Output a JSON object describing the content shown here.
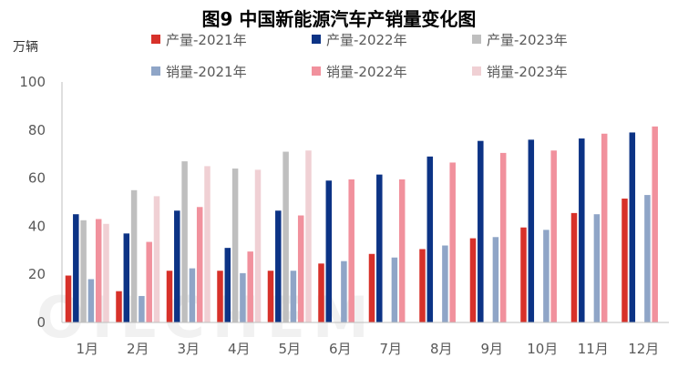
{
  "chart_data": {
    "type": "bar",
    "title": "图9 中国新能源汽车产销量变化图",
    "ylabel": "万辆",
    "ylim": [
      0,
      100
    ],
    "yticks": [
      0,
      20,
      40,
      60,
      80,
      100
    ],
    "grid": false,
    "legend_position": "top",
    "watermark": "OILCHEM",
    "categories": [
      "1月",
      "2月",
      "3月",
      "4月",
      "5月",
      "6月",
      "7月",
      "8月",
      "9月",
      "10月",
      "11月",
      "12月"
    ],
    "series": [
      {
        "name": "产量-2021年",
        "color": "#d7312a",
        "values": [
          19.5,
          13,
          21.5,
          21.5,
          21.5,
          24.5,
          28.5,
          30.5,
          35,
          39.5,
          45.5,
          51.5
        ]
      },
      {
        "name": "产量-2022年",
        "color": "#0c3385",
        "values": [
          45,
          37,
          46.5,
          31,
          46.5,
          59,
          61.5,
          69,
          75.5,
          76,
          76.5,
          79
        ]
      },
      {
        "name": "产量-2023年",
        "color": "#bfbfbf",
        "values": [
          42.5,
          55,
          67,
          64,
          71,
          null,
          null,
          null,
          null,
          null,
          null,
          null
        ]
      },
      {
        "name": "销量-2021年",
        "color": "#8fa5c7",
        "values": [
          18,
          11,
          22.5,
          20.5,
          21.5,
          25.5,
          27,
          32,
          35.5,
          38.5,
          45,
          53
        ]
      },
      {
        "name": "销量-2022年",
        "color": "#f1919d",
        "values": [
          43,
          33.5,
          48,
          29.5,
          44.5,
          59.5,
          59.5,
          66.5,
          70.5,
          71.5,
          78.5,
          81.5
        ]
      },
      {
        "name": "销量-2023年",
        "color": "#f0d0d4",
        "values": [
          41,
          52.5,
          65,
          63.5,
          71.5,
          null,
          null,
          null,
          null,
          null,
          null,
          null
        ]
      }
    ]
  }
}
